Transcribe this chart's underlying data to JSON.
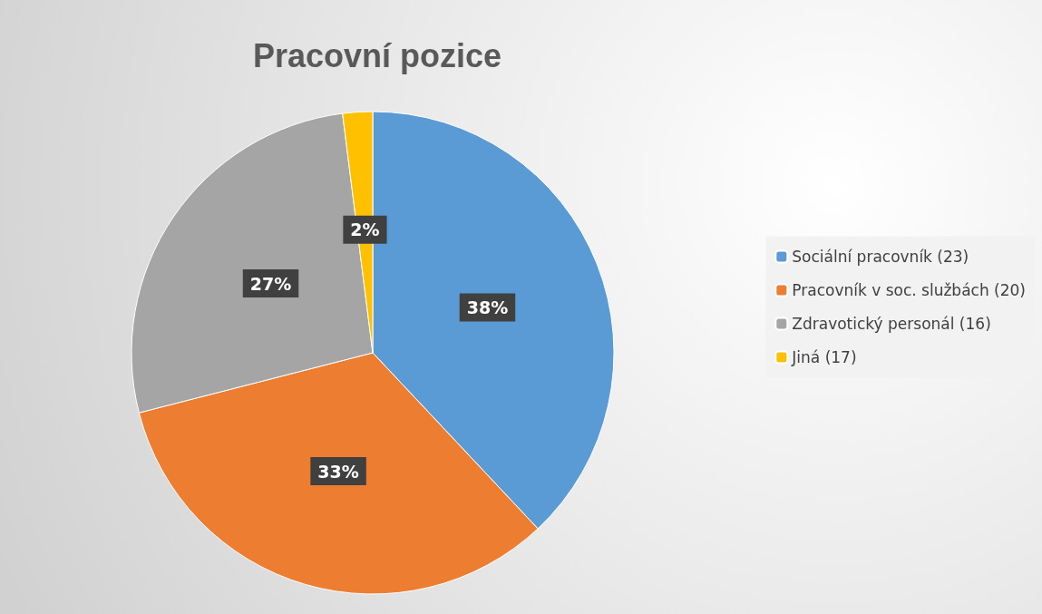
{
  "chart_data": {
    "type": "pie",
    "title": "Pracovní pozice",
    "categories": [
      "Sociální pracovník (23)",
      "Pracovník v soc. službách (20)",
      "Zdravotický personál (16)",
      "Jiná (17)"
    ],
    "values": [
      38,
      33,
      27,
      2
    ],
    "colors": [
      "#5b9bd5",
      "#ed7d31",
      "#a5a5a5",
      "#ffc000"
    ],
    "value_labels": [
      "38%",
      "33%",
      "27%",
      "2%"
    ],
    "legend": "right"
  }
}
